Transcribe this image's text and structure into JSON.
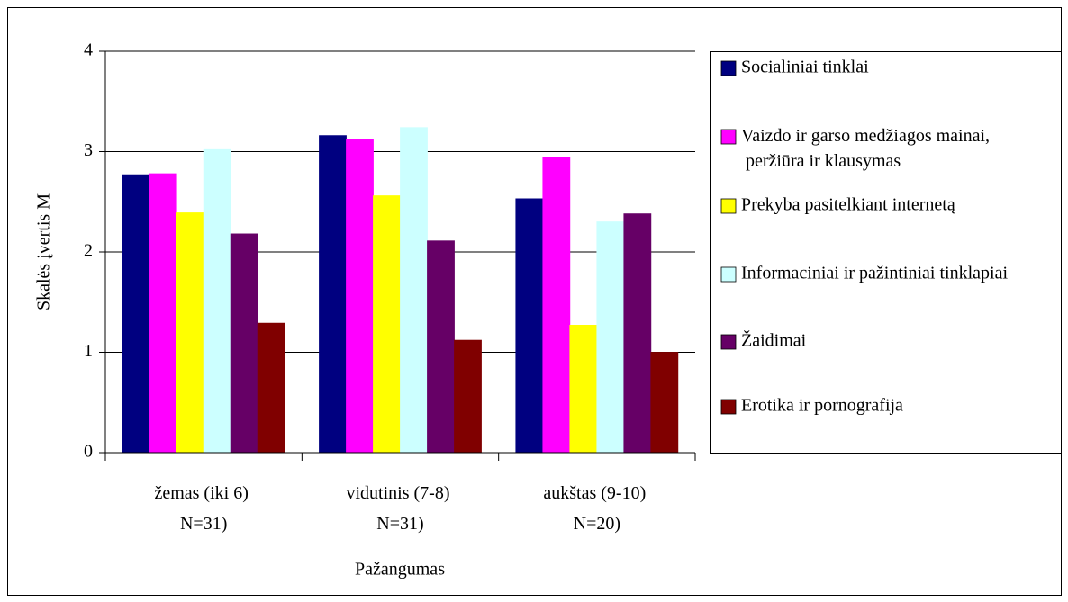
{
  "chart_data": {
    "type": "bar",
    "y_label": "Skalės įvertis M",
    "x_label": "Pažangumas",
    "categories": [
      "žemas (iki 6) (N=31)",
      "vidutinis (7-8) (N=31)",
      "aukštas (9-10) (N=20)"
    ],
    "series": [
      {
        "name": "Socialiniai tinklai",
        "color": "#000080",
        "values": [
          2.77,
          3.16,
          2.53
        ]
      },
      {
        "name": "Vaizdo ir garso medžiagos mainai, peržiūra ir klausymas",
        "color": "#ff00ff",
        "values": [
          2.78,
          3.12,
          2.94
        ]
      },
      {
        "name": "Prekyba pasitelkiant internetą",
        "color": "#ffff00",
        "values": [
          2.39,
          2.56,
          1.27
        ]
      },
      {
        "name": "Informaciniai ir pažintiniai tinklapiai",
        "color": "#ccffff",
        "values": [
          3.02,
          3.24,
          2.3
        ]
      },
      {
        "name": "Žaidimai",
        "color": "#660066",
        "values": [
          2.18,
          2.11,
          2.38
        ]
      },
      {
        "name": "Erotika ir pornografija",
        "color": "#800000",
        "values": [
          1.29,
          1.12,
          1.0
        ]
      }
    ],
    "ylim": [
      0,
      4
    ],
    "yticks": [
      0,
      1,
      2,
      3,
      4
    ],
    "grid": true,
    "legend": "right"
  }
}
